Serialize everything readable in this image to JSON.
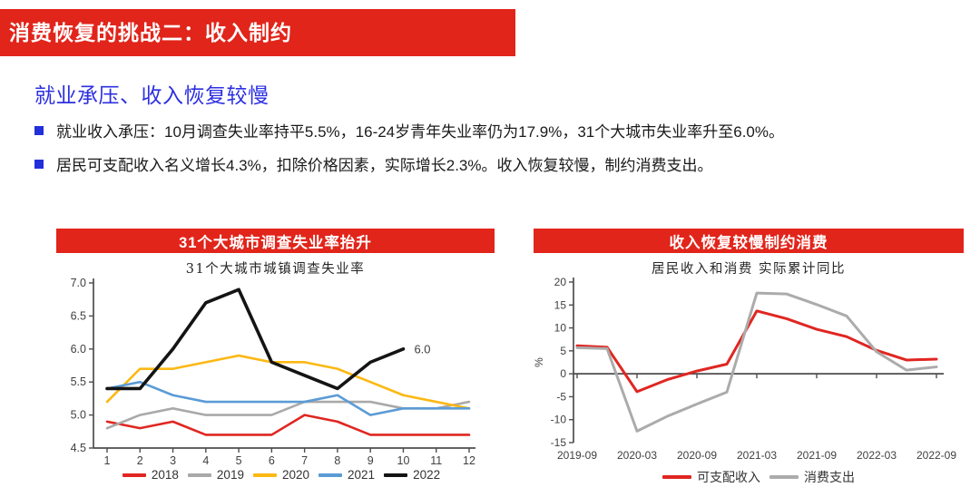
{
  "banner": {
    "title": "消费恢复的挑战二：收入制约",
    "bg_color": "#e1251b"
  },
  "section": {
    "heading": "就业承压、收入恢复较慢",
    "bullets": [
      "就业收入承压：10月调查失业率持平5.5%，16-24岁青年失业率仍为17.9%，31个大城市失业率升至6.0%。",
      "居民可支配收入名义增长4.3%，扣除价格因素，实际增长2.3%。收入恢复较慢，制约消费支出。"
    ]
  },
  "left_panel": {
    "header": "31个大城市调查失业率抬升"
  },
  "right_panel": {
    "header": "收入恢复较慢制约消费"
  },
  "chart_data": [
    {
      "type": "line",
      "title": "31个大城市城镇调查失业率",
      "xlabel": "",
      "ylabel": "",
      "categories": [
        "1",
        "2",
        "3",
        "4",
        "5",
        "6",
        "7",
        "8",
        "9",
        "10",
        "11",
        "12"
      ],
      "series": [
        {
          "name": "2018",
          "color": "#e02621",
          "width": 2.6,
          "values": [
            4.9,
            4.8,
            4.9,
            4.7,
            4.7,
            4.7,
            5.0,
            4.9,
            4.7,
            4.7,
            4.7,
            4.7
          ]
        },
        {
          "name": "2019",
          "color": "#a9a9a9",
          "width": 2.6,
          "values": [
            4.8,
            5.0,
            5.1,
            5.0,
            5.0,
            5.0,
            5.2,
            5.2,
            5.2,
            5.1,
            5.1,
            5.2
          ]
        },
        {
          "name": "2020",
          "color": "#fcb813",
          "width": 2.6,
          "values": [
            5.2,
            5.7,
            5.7,
            5.8,
            5.9,
            5.8,
            5.8,
            5.7,
            5.5,
            5.3,
            5.2,
            5.1
          ]
        },
        {
          "name": "2021",
          "color": "#5b9bd5",
          "width": 2.6,
          "values": [
            5.4,
            5.5,
            5.3,
            5.2,
            5.2,
            5.2,
            5.2,
            5.3,
            5.0,
            5.1,
            5.1,
            5.1
          ]
        },
        {
          "name": "2022",
          "color": "#141414",
          "width": 3.6,
          "values": [
            5.4,
            5.4,
            6.0,
            6.7,
            6.9,
            5.8,
            5.6,
            5.4,
            5.8,
            6.0
          ]
        }
      ],
      "ylim": [
        4.5,
        7.0
      ],
      "ytick_step": 0.5,
      "xtick_every": 1,
      "annotation": {
        "series": "2022",
        "text": "6.0"
      },
      "legend_position": "bottom",
      "grid": false
    },
    {
      "type": "line",
      "title": "居民收入和消费 实际累计同比",
      "xlabel": "",
      "ylabel": "%",
      "categories": [
        "2019-09",
        "2019-12",
        "2020-03",
        "2020-06",
        "2020-09",
        "2020-12",
        "2021-03",
        "2021-06",
        "2021-09",
        "2021-12",
        "2022-03",
        "2022-06",
        "2022-09"
      ],
      "series": [
        {
          "name": "可支配收入",
          "color": "#e02621",
          "width": 3,
          "values": [
            6.1,
            5.8,
            -3.9,
            -1.3,
            0.6,
            2.1,
            13.7,
            12.0,
            9.7,
            8.1,
            5.1,
            3.0,
            3.2
          ]
        },
        {
          "name": "消费支出",
          "color": "#ababab",
          "width": 3,
          "values": [
            5.7,
            5.5,
            -12.5,
            -9.3,
            -6.6,
            -4.0,
            17.6,
            17.4,
            15.1,
            12.6,
            4.8,
            0.8,
            1.5
          ]
        }
      ],
      "ylim": [
        -15,
        20
      ],
      "ytick_step": 5,
      "xtick_every": 2,
      "legend_position": "bottom",
      "grid": false
    }
  ]
}
